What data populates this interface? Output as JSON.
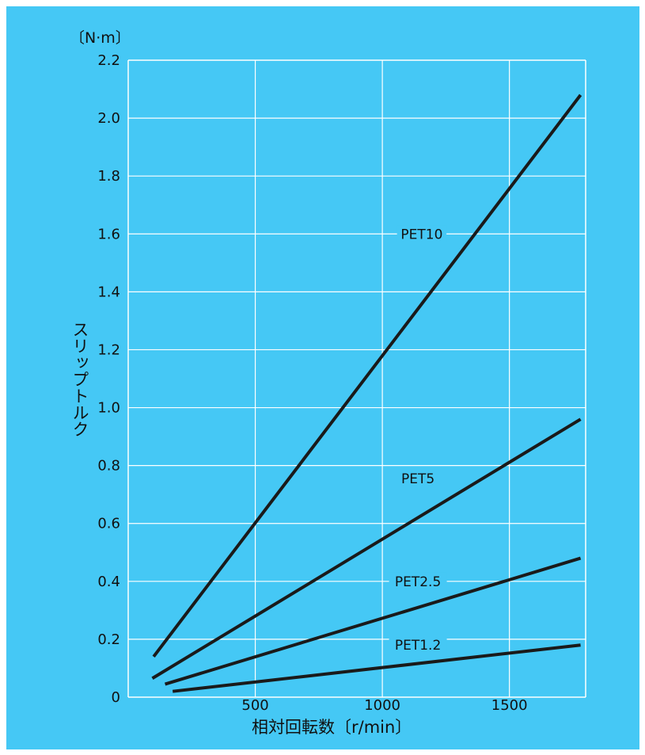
{
  "chart_data": {
    "type": "line",
    "title": "",
    "y_unit": "〔N·m〕",
    "xlabel": "相対回転数〔r/min〕",
    "ylabel": "スリップトルク",
    "xlim": [
      0,
      1800
    ],
    "ylim": [
      0,
      2.2
    ],
    "x_ticks": [
      500,
      1000,
      1500
    ],
    "y_ticks": [
      0,
      0.2,
      0.4,
      0.6,
      0.8,
      1.0,
      1.2,
      1.4,
      1.6,
      1.8,
      2.0,
      2.2
    ],
    "x_tick_labels": [
      "500",
      "1000",
      "1500"
    ],
    "y_tick_labels": [
      "0",
      "0.2",
      "0.4",
      "0.6",
      "0.8",
      "1.0",
      "1.2",
      "1.4",
      "1.6",
      "1.8",
      "2.0",
      "2.2"
    ],
    "grid": true,
    "series": [
      {
        "name": "PET10",
        "x": [
          100,
          1780
        ],
        "y": [
          0.14,
          2.08
        ]
      },
      {
        "name": "PET5",
        "x": [
          95,
          1780
        ],
        "y": [
          0.065,
          0.96
        ]
      },
      {
        "name": "PET2.5",
        "x": [
          145,
          1780
        ],
        "y": [
          0.045,
          0.48
        ]
      },
      {
        "name": "PET1.2",
        "x": [
          175,
          1780
        ],
        "y": [
          0.02,
          0.18
        ]
      }
    ],
    "colors": {
      "background": "#45c8f5",
      "grid": "#ffffff",
      "line": "#1a1a1a",
      "text": "#111111"
    }
  }
}
